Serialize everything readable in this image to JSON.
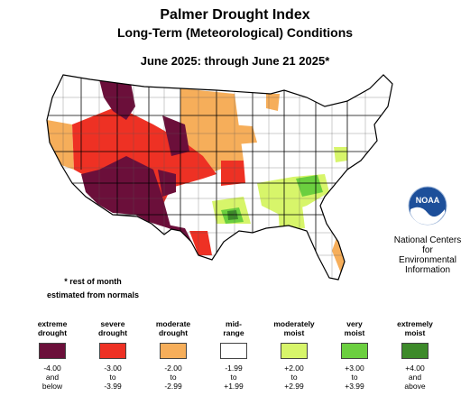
{
  "title": "Palmer Drought Index",
  "subtitle": "Long-Term (Meteorological) Conditions",
  "period": "June 2025: through June 21 2025*",
  "note": {
    "line1": "* rest of month",
    "line2": "estimated from normals"
  },
  "agency": {
    "logo_text": "NOAA",
    "line1": "National Centers for",
    "line2": "Environmental",
    "line3": "Information"
  },
  "legend": [
    {
      "label": [
        "extreme",
        "drought"
      ],
      "range": [
        "-4.00",
        "and",
        "below"
      ],
      "color": "#6b0f3a"
    },
    {
      "label": [
        "severe",
        "drought"
      ],
      "range": [
        "-3.00",
        "to",
        "-3.99"
      ],
      "color": "#ee3124"
    },
    {
      "label": [
        "moderate",
        "drought"
      ],
      "range": [
        "-2.00",
        "to",
        "-2.99"
      ],
      "color": "#f6ae5a"
    },
    {
      "label": [
        "mid-",
        "range"
      ],
      "range": [
        "-1.99",
        "to",
        "+1.99"
      ],
      "color": "#ffffff"
    },
    {
      "label": [
        "moderately",
        "moist"
      ],
      "range": [
        "+2.00",
        "to",
        "+2.99"
      ],
      "color": "#d7f56a"
    },
    {
      "label": [
        "very",
        "moist"
      ],
      "range": [
        "+3.00",
        "to",
        "+3.99"
      ],
      "color": "#6bcf3f"
    },
    {
      "label": [
        "extremely",
        "moist"
      ],
      "range": [
        "+4.00",
        "and",
        "above"
      ],
      "color": "#3d8a2a"
    }
  ]
}
